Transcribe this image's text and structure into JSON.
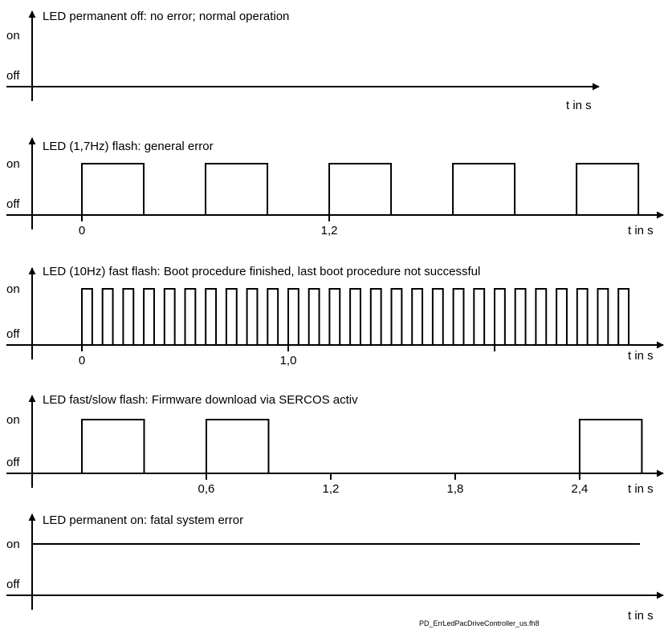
{
  "y_levels": {
    "on": "on",
    "off": "off"
  },
  "x_unit_label": "t in s",
  "footer": "PD_ErrLedPacDriveController_us.fh8",
  "panels": [
    {
      "id": "permanent-off",
      "title": "LED permanent off: no error; normal operation",
      "ticks": [],
      "signal": {
        "kind": "constant",
        "level": "off"
      }
    },
    {
      "id": "flash-1-7hz",
      "title": "LED (1,7Hz) flash: general error",
      "ticks": [
        {
          "value": 0,
          "label": "0"
        },
        {
          "value": 1.2,
          "label": "1,2"
        }
      ],
      "signal": {
        "kind": "periodic",
        "start": 0,
        "period": 0.6,
        "on_duration": 0.3,
        "pulses": 5
      }
    },
    {
      "id": "fast-flash-10hz",
      "title": "LED (10Hz) fast flash: Boot procedure finished, last boot procedure not successful",
      "ticks": [
        {
          "value": 0,
          "label": "0"
        },
        {
          "value": 1.0,
          "label": "1,0"
        },
        {
          "value": 2.0,
          "label": ""
        }
      ],
      "signal": {
        "kind": "periodic",
        "start": 0,
        "period": 0.1,
        "on_duration": 0.05,
        "pulses": 27
      }
    },
    {
      "id": "fast-slow-flash",
      "title": "LED fast/slow flash: Firmware download via SERCOS activ",
      "ticks": [
        {
          "value": 0.6,
          "label": "0,6"
        },
        {
          "value": 1.2,
          "label": "1,2"
        },
        {
          "value": 1.8,
          "label": "1,8"
        },
        {
          "value": 2.4,
          "label": "2,4"
        }
      ],
      "signal": {
        "kind": "pulses",
        "intervals": [
          [
            0,
            0.3
          ],
          [
            0.6,
            0.9
          ],
          [
            2.4,
            2.7
          ]
        ]
      }
    },
    {
      "id": "permanent-on",
      "title": "LED permanent on: fatal system error",
      "ticks": [],
      "signal": {
        "kind": "constant",
        "level": "on"
      }
    }
  ]
}
